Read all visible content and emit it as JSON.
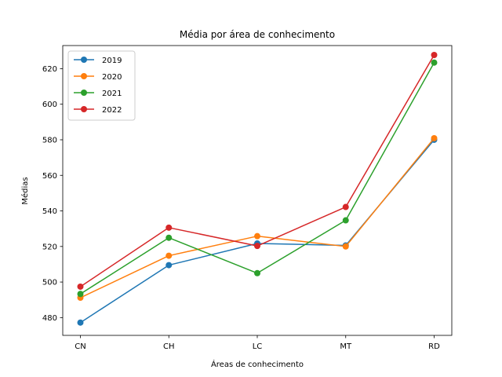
{
  "chart_data": {
    "type": "line",
    "title": "Média por área de conhecimento",
    "xlabel": "Áreas de conhecimento",
    "ylabel": "Médias",
    "categories": [
      "CN",
      "CH",
      "LC",
      "MT",
      "RD"
    ],
    "ylim": [
      470,
      633
    ],
    "yticks": [
      480,
      500,
      520,
      540,
      560,
      580,
      600,
      620
    ],
    "grid": false,
    "legend_position": "upper-left",
    "series": [
      {
        "name": "2019",
        "color": "#1f77b4",
        "values": [
          477.2,
          509.5,
          521.7,
          520.6,
          580.0
        ]
      },
      {
        "name": "2020",
        "color": "#ff7f0e",
        "values": [
          491.2,
          514.8,
          525.8,
          520.0,
          580.9
        ]
      },
      {
        "name": "2021",
        "color": "#2ca02c",
        "values": [
          493.3,
          524.9,
          505.0,
          534.7,
          623.4
        ]
      },
      {
        "name": "2022",
        "color": "#d62728",
        "values": [
          497.4,
          530.6,
          520.3,
          542.2,
          627.7
        ]
      }
    ]
  }
}
